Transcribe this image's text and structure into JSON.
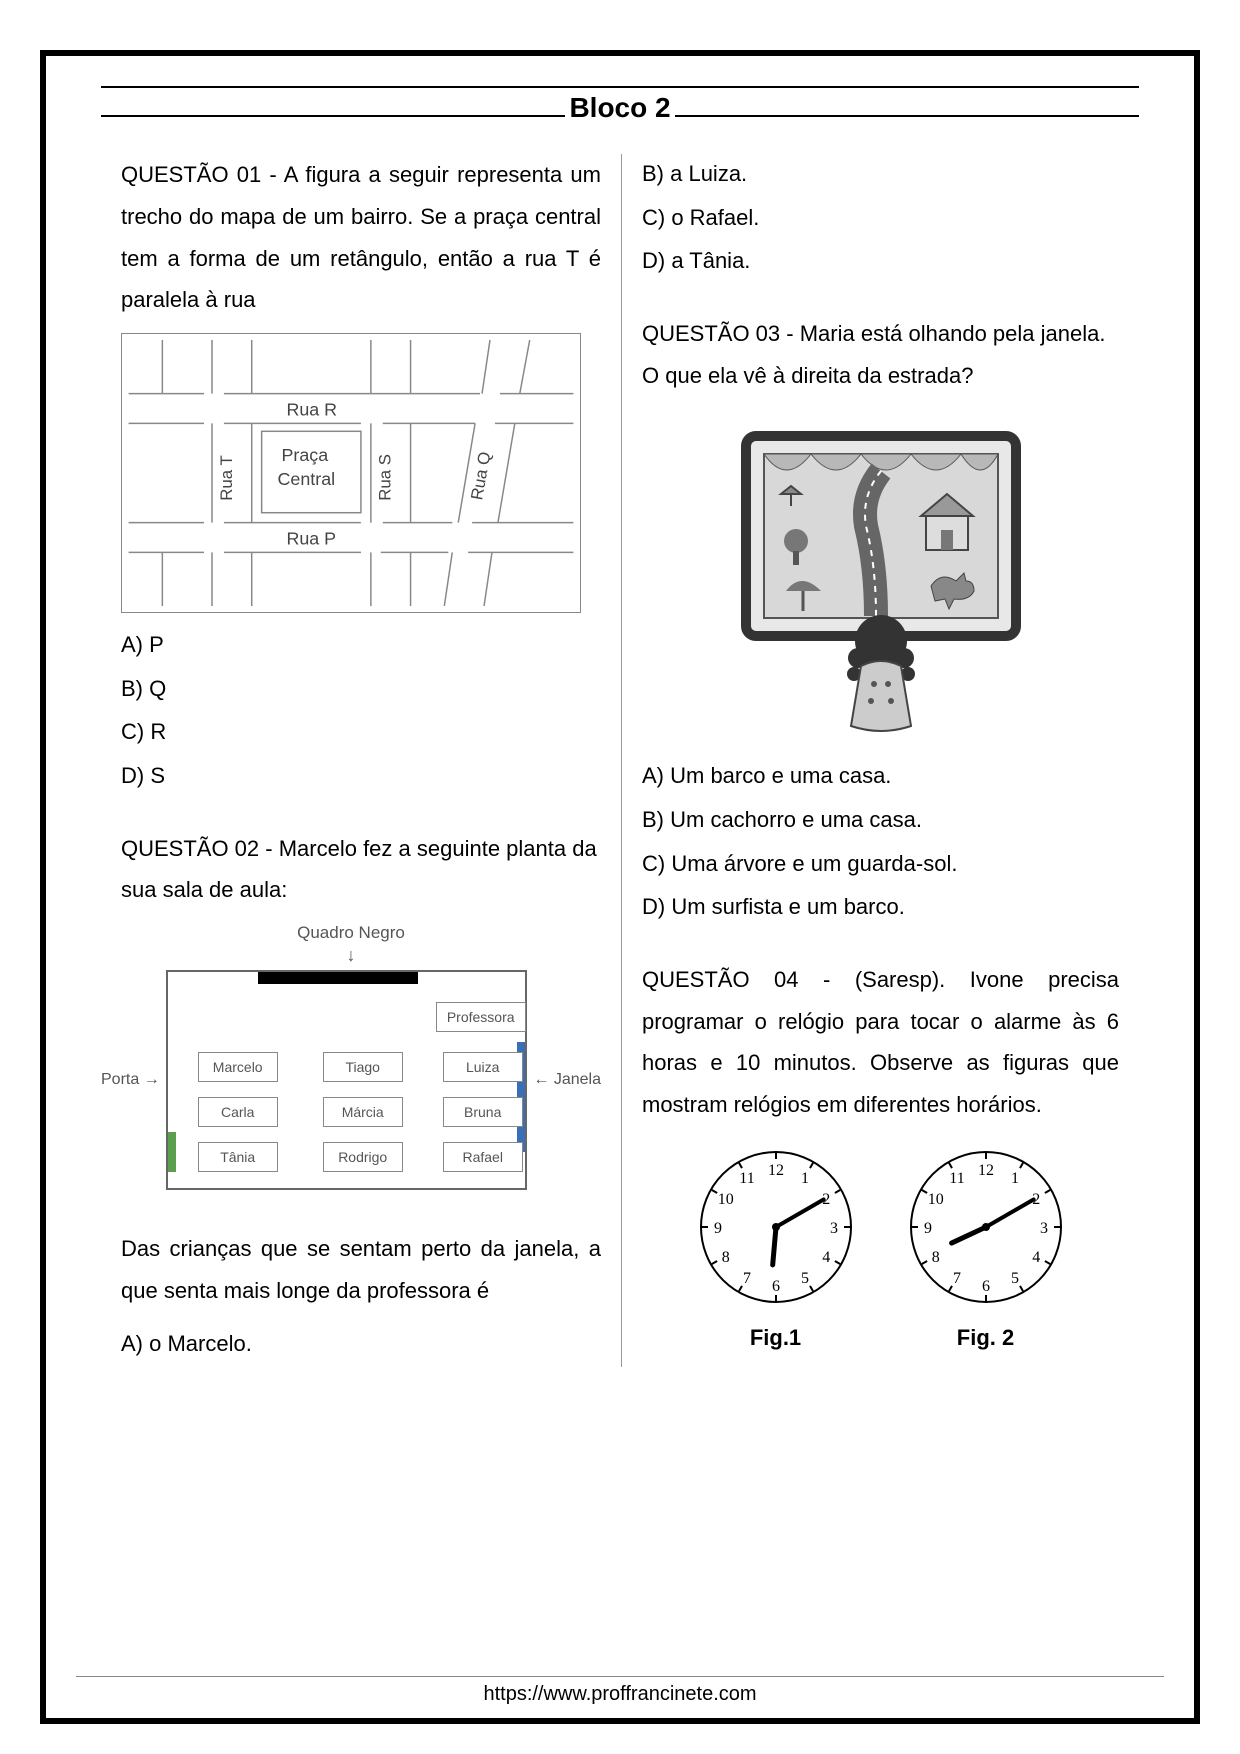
{
  "header": {
    "title": "Bloco 2"
  },
  "footer": {
    "url": "https://www.proffrancinete.com"
  },
  "colors": {
    "text": "#000000",
    "border": "#000000",
    "diagram_line": "#888888",
    "diagram_text": "#555555",
    "door": "#5a9e4e",
    "window": "#3b6fb5",
    "blackboard": "#000000"
  },
  "q1": {
    "prompt": "QUESTÃO 01 - A figura a seguir representa um trecho do mapa de um bairro. Se a praça central tem a forma de um retângulo, então a rua T é paralela à rua",
    "map_labels": {
      "rua_r": "Rua R",
      "praca_line1": "Praça",
      "praca_line2": "Central",
      "rua_p": "Rua P",
      "rua_t": "Rua T",
      "rua_s": "Rua S",
      "rua_q": "Rua Q"
    },
    "options": {
      "a": "A) P",
      "b": "B) Q",
      "c": "C) R",
      "d": "D) S"
    }
  },
  "q2": {
    "prompt": "QUESTÃO 02 - Marcelo fez a seguinte planta da sua sala de aula:",
    "labels": {
      "quadro": "Quadro Negro",
      "porta": "Porta",
      "janela": "Janela",
      "arrow_right": "→",
      "arrow_left": "←",
      "arrow_down": "↓"
    },
    "desks": {
      "professora": "Professora",
      "marcelo": "Marcelo",
      "tiago": "Tiago",
      "luiza": "Luiza",
      "carla": "Carla",
      "marcia": "Márcia",
      "bruna": "Bruna",
      "tania": "Tânia",
      "rodrigo": "Rodrigo",
      "rafael": "Rafael"
    },
    "follow": "Das crianças que se sentam perto da janela, a que senta mais longe da professora é",
    "options": {
      "a": "A) o Marcelo.",
      "b": "B) a Luiza.",
      "c": "C) o Rafael.",
      "d": "D) a Tânia."
    }
  },
  "q3": {
    "prompt": "QUESTÃO 03 - Maria está olhando pela janela. O que ela vê à direita da estrada?",
    "options": {
      "a": "A) Um barco e uma casa.",
      "b": "B) Um cachorro e uma casa.",
      "c": "C) Uma árvore e um guarda-sol.",
      "d": "D) Um surfista e um barco."
    }
  },
  "q4": {
    "prompt": "QUESTÃO 04 - (Saresp). Ivone precisa programar o relógio para tocar o alarme às 6 horas e 10 minutos. Observe as figuras que mostram relógios em diferentes horários.",
    "clock_numbers": [
      "12",
      "1",
      "2",
      "3",
      "4",
      "5",
      "6",
      "7",
      "8",
      "9",
      "10",
      "11"
    ],
    "clocks": [
      {
        "label": "Fig.1",
        "hour_angle": 185,
        "minute_angle": 60
      },
      {
        "label": "Fig. 2",
        "hour_angle": 245,
        "minute_angle": 60
      }
    ]
  }
}
